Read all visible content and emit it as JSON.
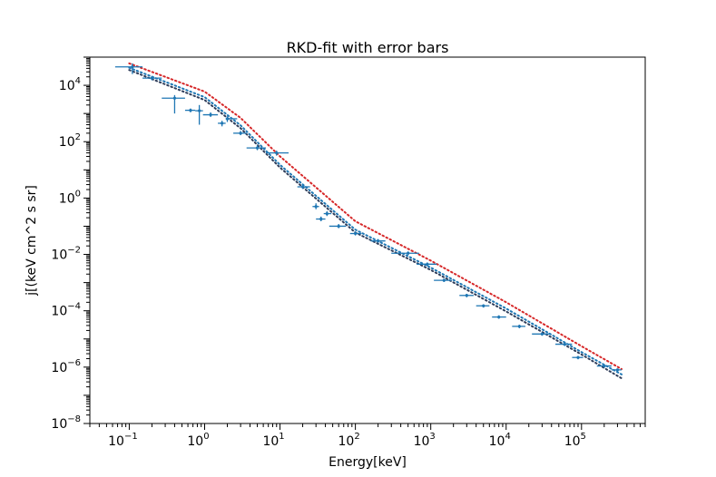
{
  "chart_data": {
    "type": "scatter",
    "title": "RKD-fit with error bars",
    "xlabel": "Energy[keV]",
    "ylabel": "j[(keV cm^2 s sr]",
    "xscale": "log",
    "yscale": "log",
    "xlim": [
      0.03,
      700000
    ],
    "ylim": [
      1e-08,
      100000.0
    ],
    "x_ticks": [
      {
        "value": 0.1,
        "base": "10",
        "exp": "−1"
      },
      {
        "value": 1,
        "base": "10",
        "exp": "0"
      },
      {
        "value": 10,
        "base": "10",
        "exp": "1"
      },
      {
        "value": 100,
        "base": "10",
        "exp": "2"
      },
      {
        "value": 1000,
        "base": "10",
        "exp": "3"
      },
      {
        "value": 10000,
        "base": "10",
        "exp": "4"
      },
      {
        "value": 100000,
        "base": "10",
        "exp": "5"
      }
    ],
    "y_ticks": [
      {
        "value": 1e-08,
        "base": "10",
        "exp": "−8"
      },
      {
        "value": 1e-06,
        "base": "10",
        "exp": "−6"
      },
      {
        "value": 0.0001,
        "base": "10",
        "exp": "−4"
      },
      {
        "value": 0.01,
        "base": "10",
        "exp": "−2"
      },
      {
        "value": 1,
        "base": "10",
        "exp": "0"
      },
      {
        "value": 100,
        "base": "10",
        "exp": "2"
      },
      {
        "value": 10000,
        "base": "10",
        "exp": "4"
      }
    ],
    "grid": false,
    "colors": {
      "data": "#1f77b4",
      "fit_red": "#d62728",
      "fit_dark": "#2f3d5a",
      "fit_blue": "#1f77b4"
    },
    "data_points": [
      {
        "x": 0.11,
        "y": 45000,
        "xlo": 0.065,
        "xhi": 0.15,
        "ylo": 25000,
        "yhi": 60000
      },
      {
        "x": 0.2,
        "y": 18000,
        "xlo": 0.15,
        "xhi": 0.27,
        "ylo": 15000,
        "yhi": 21000
      },
      {
        "x": 0.4,
        "y": 3500,
        "xlo": 0.27,
        "xhi": 0.55,
        "ylo": 1000,
        "yhi": 4500
      },
      {
        "x": 0.65,
        "y": 1300,
        "xlo": 0.55,
        "xhi": 0.75,
        "ylo": 1100,
        "yhi": 1500
      },
      {
        "x": 0.85,
        "y": 1250,
        "xlo": 0.75,
        "xhi": 0.95,
        "ylo": 400,
        "yhi": 2000
      },
      {
        "x": 1.2,
        "y": 900,
        "xlo": 0.95,
        "xhi": 1.5,
        "ylo": 750,
        "yhi": 1100
      },
      {
        "x": 1.7,
        "y": 450,
        "xlo": 1.5,
        "xhi": 1.9,
        "ylo": 350,
        "yhi": 550
      },
      {
        "x": 2.0,
        "y": 650,
        "xlo": 1.9,
        "xhi": 2.7,
        "ylo": 500,
        "yhi": 800
      },
      {
        "x": 3.0,
        "y": 200,
        "xlo": 2.4,
        "xhi": 3.6,
        "ylo": 170,
        "yhi": 240
      },
      {
        "x": 5.0,
        "y": 60,
        "xlo": 3.6,
        "xhi": 6.5,
        "ylo": 50,
        "yhi": 75
      },
      {
        "x": 9.0,
        "y": 40,
        "xlo": 6.5,
        "xhi": 13,
        "ylo": 32,
        "yhi": 48
      },
      {
        "x": 20,
        "y": 2.5,
        "xlo": 17,
        "xhi": 25,
        "ylo": 2.1,
        "yhi": 3
      },
      {
        "x": 30,
        "y": 0.5,
        "xlo": 27,
        "xhi": 33,
        "ylo": 0.4,
        "yhi": 0.65
      },
      {
        "x": 35,
        "y": 0.18,
        "xlo": 30,
        "xhi": 40,
        "ylo": 0.15,
        "yhi": 0.22
      },
      {
        "x": 42,
        "y": 0.28,
        "xlo": 38,
        "xhi": 48,
        "ylo": 0.23,
        "yhi": 0.34
      },
      {
        "x": 60,
        "y": 0.1,
        "xlo": 45,
        "xhi": 75,
        "ylo": 0.085,
        "yhi": 0.12
      },
      {
        "x": 100,
        "y": 0.055,
        "xlo": 85,
        "xhi": 120,
        "ylo": 0.047,
        "yhi": 0.065
      },
      {
        "x": 200,
        "y": 0.03,
        "xlo": 160,
        "xhi": 250,
        "ylo": 0.026,
        "yhi": 0.035
      },
      {
        "x": 500,
        "y": 0.011,
        "xlo": 300,
        "xhi": 700,
        "ylo": 0.0095,
        "yhi": 0.0128
      },
      {
        "x": 900,
        "y": 0.0045,
        "xlo": 650,
        "xhi": 1200,
        "ylo": 0.0039,
        "yhi": 0.0052
      },
      {
        "x": 1500,
        "y": 0.0012,
        "xlo": 1100,
        "xhi": 1900,
        "ylo": 0.00105,
        "yhi": 0.00138
      },
      {
        "x": 3000,
        "y": 0.00035,
        "xlo": 2400,
        "xhi": 3700,
        "ylo": 0.0003,
        "yhi": 0.0004
      },
      {
        "x": 5000,
        "y": 0.00015,
        "xlo": 4000,
        "xhi": 6000,
        "ylo": 0.00013,
        "yhi": 0.00017
      },
      {
        "x": 8000,
        "y": 6e-05,
        "xlo": 6500,
        "xhi": 10000,
        "ylo": 5.2e-05,
        "yhi": 6.9e-05
      },
      {
        "x": 15000,
        "y": 2.8e-05,
        "xlo": 12000,
        "xhi": 18000,
        "ylo": 2.4e-05,
        "yhi": 3.2e-05
      },
      {
        "x": 30000,
        "y": 1.5e-05,
        "xlo": 22000,
        "xhi": 38000,
        "ylo": 1.3e-05,
        "yhi": 1.7e-05
      },
      {
        "x": 60000,
        "y": 6.5e-06,
        "xlo": 45000,
        "xhi": 75000,
        "ylo": 5.6e-06,
        "yhi": 7.5e-06
      },
      {
        "x": 90000,
        "y": 2.2e-06,
        "xlo": 75000,
        "xhi": 105000,
        "ylo": 1.9e-06,
        "yhi": 2.5e-06
      },
      {
        "x": 200000,
        "y": 1.1e-06,
        "xlo": 160000,
        "xhi": 250000,
        "ylo": 9.5e-07,
        "yhi": 1.25e-06
      },
      {
        "x": 300000,
        "y": 8e-07,
        "xlo": 250000,
        "xhi": 340000,
        "ylo": 7e-07,
        "yhi": 9e-07
      }
    ],
    "fit_lines": [
      {
        "color_key": "fit_red",
        "style": "dotted",
        "points": [
          [
            0.1,
            60000
          ],
          [
            1,
            6000
          ],
          [
            3,
            700
          ],
          [
            10,
            30
          ],
          [
            100,
            0.15
          ],
          [
            1000,
            0.006
          ],
          [
            10000,
            0.0002
          ],
          [
            100000,
            5.5e-06
          ],
          [
            340000,
            8.5e-07
          ]
        ]
      },
      {
        "color_key": "fit_dark",
        "style": "dotted",
        "points": [
          [
            0.1,
            35000
          ],
          [
            1,
            3000
          ],
          [
            3,
            300
          ],
          [
            10,
            12
          ],
          [
            100,
            0.06
          ],
          [
            1000,
            0.0028
          ],
          [
            10000,
            9.5e-05
          ],
          [
            100000,
            2.8e-06
          ],
          [
            340000,
            4e-07
          ]
        ]
      },
      {
        "color_key": "fit_blue",
        "style": "dotted",
        "points": [
          [
            0.1,
            42000
          ],
          [
            1,
            3800
          ],
          [
            3,
            380
          ],
          [
            10,
            15
          ],
          [
            100,
            0.075
          ],
          [
            1000,
            0.0034
          ],
          [
            10000,
            0.00012
          ],
          [
            100000,
            3.4e-06
          ],
          [
            340000,
            5.5e-07
          ]
        ]
      }
    ]
  }
}
